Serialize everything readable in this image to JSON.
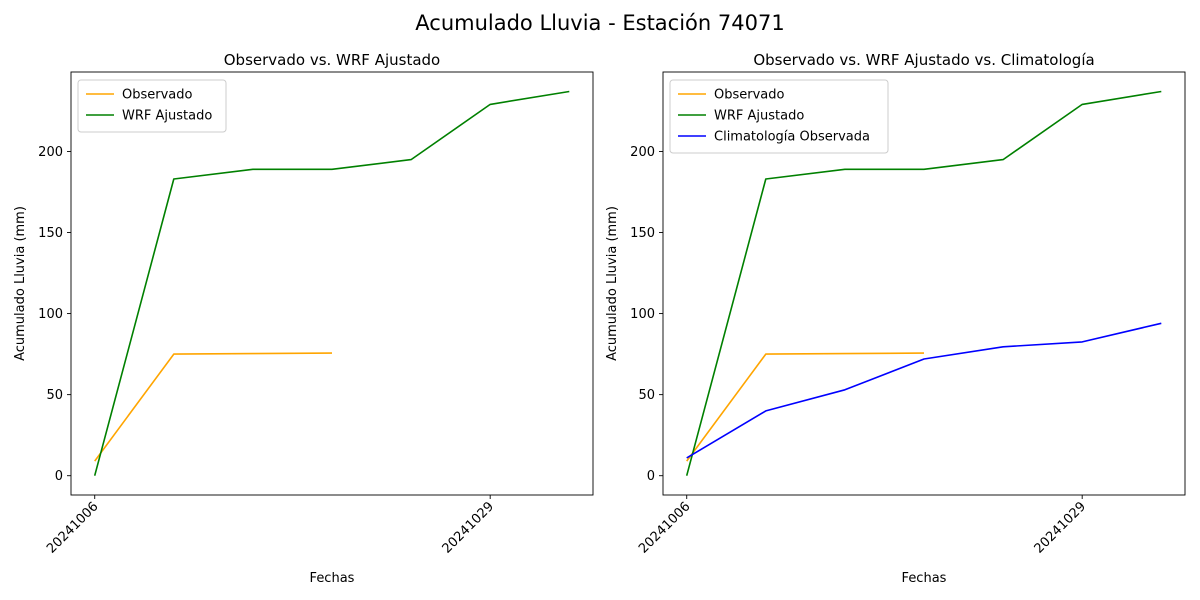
{
  "suptitle": "Acumulado Lluvia - Estación 74071",
  "chart_data": [
    {
      "type": "line",
      "title": "Observado vs. WRF Ajustado",
      "xlabel": "Fechas",
      "ylabel": "Acumulado Lluvia (mm)",
      "xticks": [
        "20241006",
        "20241029"
      ],
      "yticks": [
        0,
        50,
        100,
        150,
        200
      ],
      "legend_position": "upper-left",
      "grid": false,
      "series": [
        {
          "name": "Observado",
          "color": "#ffa500",
          "values": [
            9,
            75,
            75.3,
            75.6,
            null,
            null,
            null
          ]
        },
        {
          "name": "WRF Ajustado",
          "color": "#008000",
          "values": [
            0,
            183,
            189,
            189,
            195,
            229,
            237
          ]
        }
      ]
    },
    {
      "type": "line",
      "title": "Observado vs. WRF Ajustado vs. Climatología",
      "xlabel": "Fechas",
      "ylabel": "Acumulado Lluvia (mm)",
      "xticks": [
        "20241006",
        "20241029"
      ],
      "yticks": [
        0,
        50,
        100,
        150,
        200
      ],
      "legend_position": "upper-left",
      "grid": false,
      "series": [
        {
          "name": "Observado",
          "color": "#ffa500",
          "values": [
            9,
            75,
            75.3,
            75.6,
            null,
            null,
            null
          ]
        },
        {
          "name": "WRF Ajustado",
          "color": "#008000",
          "values": [
            0,
            183,
            189,
            189,
            195,
            229,
            237
          ]
        },
        {
          "name": "Climatología Observada",
          "color": "#0000ff",
          "values": [
            11,
            40,
            53,
            72,
            79.5,
            82.5,
            94
          ]
        }
      ]
    }
  ]
}
